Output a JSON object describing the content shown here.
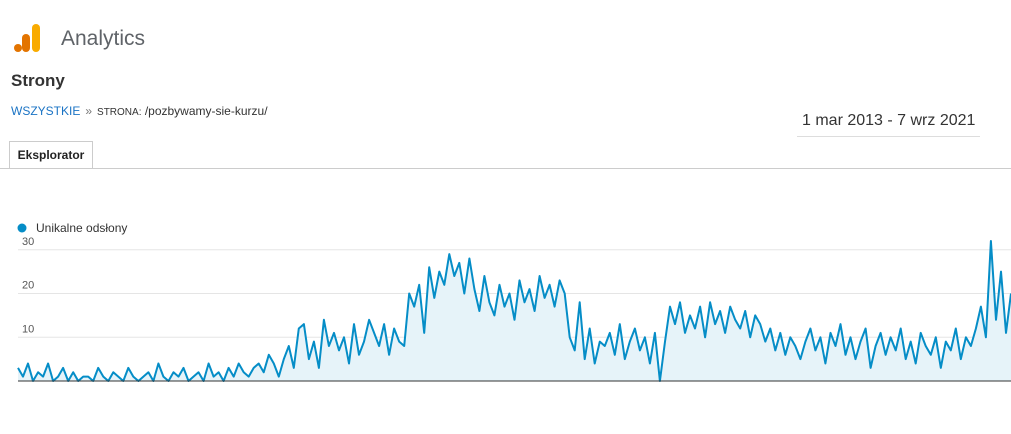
{
  "header": {
    "brand": "Analytics",
    "title": "Strony"
  },
  "breadcrumb": {
    "root": "WSZYSTKIE",
    "separator": "»",
    "label": "STRONA:",
    "path": "/pozbywamy-sie-kurzu/"
  },
  "date_range": "1 mar 2013 - 7 wrz 2021",
  "tab": "Eksplorator",
  "chart_data": {
    "type": "area",
    "ylim": [
      0,
      32
    ],
    "yticks": [
      10,
      20,
      30
    ],
    "grid": true,
    "series": [
      {
        "name": "Unikalne odsłony",
        "color": "#058dc7",
        "values": [
          3,
          1,
          4,
          0,
          2,
          1,
          4,
          0,
          1,
          3,
          0,
          2,
          0,
          1,
          1,
          0,
          3,
          1,
          0,
          2,
          1,
          0,
          3,
          1,
          0,
          1,
          2,
          0,
          4,
          1,
          0,
          2,
          1,
          3,
          0,
          1,
          2,
          0,
          4,
          1,
          2,
          0,
          3,
          1,
          4,
          2,
          1,
          3,
          4,
          2,
          6,
          4,
          1,
          5,
          8,
          3,
          12,
          13,
          5,
          9,
          3,
          14,
          8,
          11,
          7,
          10,
          4,
          13,
          6,
          9,
          14,
          11,
          8,
          13,
          6,
          12,
          9,
          8,
          20,
          17,
          22,
          11,
          26,
          19,
          25,
          22,
          29,
          24,
          27,
          20,
          28,
          21,
          16,
          24,
          18,
          15,
          22,
          17,
          20,
          14,
          23,
          18,
          21,
          16,
          24,
          19,
          22,
          17,
          23,
          20,
          10,
          7,
          18,
          5,
          12,
          4,
          9,
          8,
          11,
          6,
          13,
          5,
          9,
          12,
          7,
          10,
          4,
          11,
          0,
          9,
          17,
          13,
          18,
          11,
          15,
          12,
          17,
          10,
          18,
          13,
          16,
          11,
          17,
          14,
          12,
          16,
          10,
          15,
          13,
          9,
          12,
          7,
          11,
          6,
          10,
          8,
          5,
          9,
          12,
          7,
          10,
          4,
          11,
          8,
          13,
          6,
          10,
          5,
          9,
          12,
          3,
          8,
          11,
          6,
          10,
          7,
          12,
          5,
          9,
          4,
          11,
          8,
          6,
          10,
          3,
          9,
          7,
          12,
          5,
          10,
          8,
          12,
          17,
          10,
          32,
          14,
          25,
          11,
          20
        ]
      }
    ]
  }
}
